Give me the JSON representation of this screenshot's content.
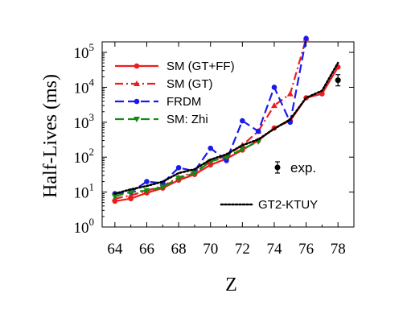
{
  "chart_data": {
    "type": "line",
    "xlabel": "Z",
    "ylabel": "Half-Lives (ms)",
    "xlim": [
      63.2,
      79
    ],
    "ylim": [
      1,
      200000
    ],
    "yscale": "log",
    "x_ticks": [
      64,
      66,
      68,
      70,
      72,
      74,
      76,
      78
    ],
    "x_tick_labels": [
      "64",
      "66",
      "68",
      "70",
      "72",
      "74",
      "76",
      "78"
    ],
    "y_ticks": [
      1,
      10,
      100,
      1000,
      10000,
      100000
    ],
    "y_tick_labels": [
      {
        "base": "10",
        "exp": "0"
      },
      {
        "base": "10",
        "exp": "1"
      },
      {
        "base": "10",
        "exp": "2"
      },
      {
        "base": "10",
        "exp": "3"
      },
      {
        "base": "10",
        "exp": "4"
      },
      {
        "base": "10",
        "exp": "5"
      }
    ],
    "legend_position": "top-left",
    "series": [
      {
        "name": "SM (GT+FF)",
        "color": "#ee1c1c",
        "dash": "solid",
        "marker": "circle",
        "x": [
          64,
          65,
          66,
          67,
          68,
          69,
          70,
          71,
          72,
          73,
          74,
          75,
          76,
          77,
          78
        ],
        "y": [
          5.5,
          6.5,
          9.5,
          13,
          22,
          32,
          60,
          90,
          160,
          300,
          680,
          1100,
          5000,
          6500,
          38000
        ]
      },
      {
        "name": "SM (GT)",
        "color": "#ee1c1c",
        "dash": "dashdot",
        "marker": "triangle",
        "x": [
          64,
          65,
          66,
          67,
          68,
          69,
          70,
          71,
          72,
          73,
          74,
          75,
          76
        ],
        "y": [
          6.5,
          8,
          11,
          15,
          26,
          38,
          75,
          110,
          220,
          550,
          3000,
          6500,
          250000
        ]
      },
      {
        "name": "FRDM",
        "color": "#1a1aee",
        "dash": "dashed",
        "marker": "circle",
        "x": [
          64,
          65,
          66,
          67,
          68,
          69,
          70,
          71,
          72,
          73,
          74,
          75,
          76
        ],
        "y": [
          9,
          10,
          20,
          18,
          50,
          40,
          180,
          80,
          1100,
          550,
          10000,
          1000,
          250000
        ]
      },
      {
        "name": "SM: Zhi",
        "color": "#138a13",
        "dash": "dashed",
        "marker": "triangle-down",
        "x": [
          64,
          65,
          66,
          67,
          68,
          69,
          70,
          71,
          72,
          73
        ],
        "y": [
          7.5,
          10,
          11,
          14,
          25,
          35,
          75,
          100,
          170,
          280
        ]
      },
      {
        "name": "GT2-KTUY",
        "color": "#000000",
        "dash": "dotted",
        "marker": "none",
        "x": [
          64,
          65,
          66,
          67,
          68,
          69,
          70,
          71,
          72,
          73,
          74,
          75,
          76,
          77,
          78
        ],
        "y": [
          9,
          12,
          15,
          20,
          35,
          45,
          85,
          120,
          220,
          320,
          650,
          1200,
          5000,
          8000,
          50000
        ]
      }
    ],
    "experimental": {
      "label": "exp.",
      "x": [
        78
      ],
      "y": [
        16000
      ],
      "y_err_low": [
        11000
      ],
      "y_err_high": [
        23000
      ]
    }
  }
}
